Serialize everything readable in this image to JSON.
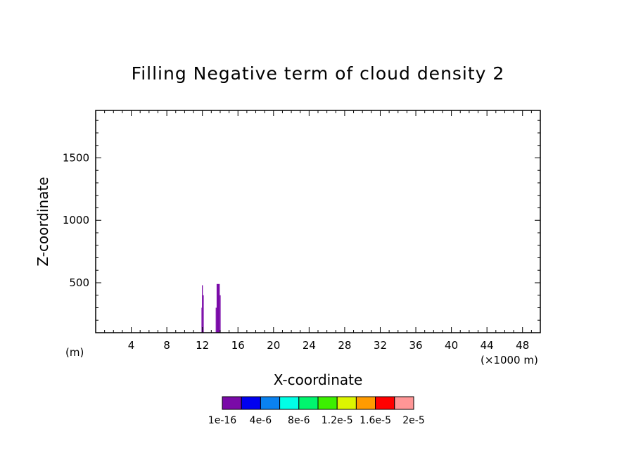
{
  "chart_data": {
    "type": "heatmap",
    "title": "Filling Negative term of cloud density 2",
    "xlabel": "X-coordinate",
    "ylabel": "Z-coordinate",
    "x_units": "(×1000 m)",
    "y_units": "(m)",
    "xlim": [
      0,
      50
    ],
    "ylim": [
      100,
      1880
    ],
    "x_ticks": [
      4,
      8,
      12,
      16,
      20,
      24,
      28,
      32,
      36,
      40,
      44,
      48
    ],
    "y_ticks": [
      500,
      1000,
      1500
    ],
    "shaded_regions": [
      {
        "x0": 11.95,
        "x1": 12.05,
        "z0": 100,
        "z1": 480,
        "level": "1e-16",
        "color": "#7a0aa8"
      },
      {
        "x0": 12.05,
        "x1": 12.15,
        "z0": 100,
        "z1": 400,
        "level": "1e-16",
        "color": "#7a0aa8"
      },
      {
        "x0": 11.9,
        "x1": 12.0,
        "z0": 100,
        "z1": 300,
        "level": "1e-16",
        "color": "#7a0aa8"
      },
      {
        "x0": 13.6,
        "x1": 13.95,
        "z0": 100,
        "z1": 490,
        "level": "1e-16",
        "color": "#7a0aa8"
      },
      {
        "x0": 13.95,
        "x1": 14.05,
        "z0": 100,
        "z1": 400,
        "level": "1e-16",
        "color": "#7a0aa8"
      },
      {
        "x0": 13.5,
        "x1": 13.6,
        "z0": 100,
        "z1": 300,
        "level": "1e-16",
        "color": "#7a0aa8"
      }
    ],
    "colorbar": {
      "labels": [
        "1e-16",
        "4e-6",
        "8e-6",
        "1.2e-5",
        "1.6e-5",
        "2e-5"
      ],
      "colors": [
        "#7a0aa8",
        "#0000f0",
        "#0a82f0",
        "#00ffe6",
        "#00f56e",
        "#3cf000",
        "#dcf500",
        "#ff9b00",
        "#ff0000",
        "#ff9696"
      ]
    }
  }
}
